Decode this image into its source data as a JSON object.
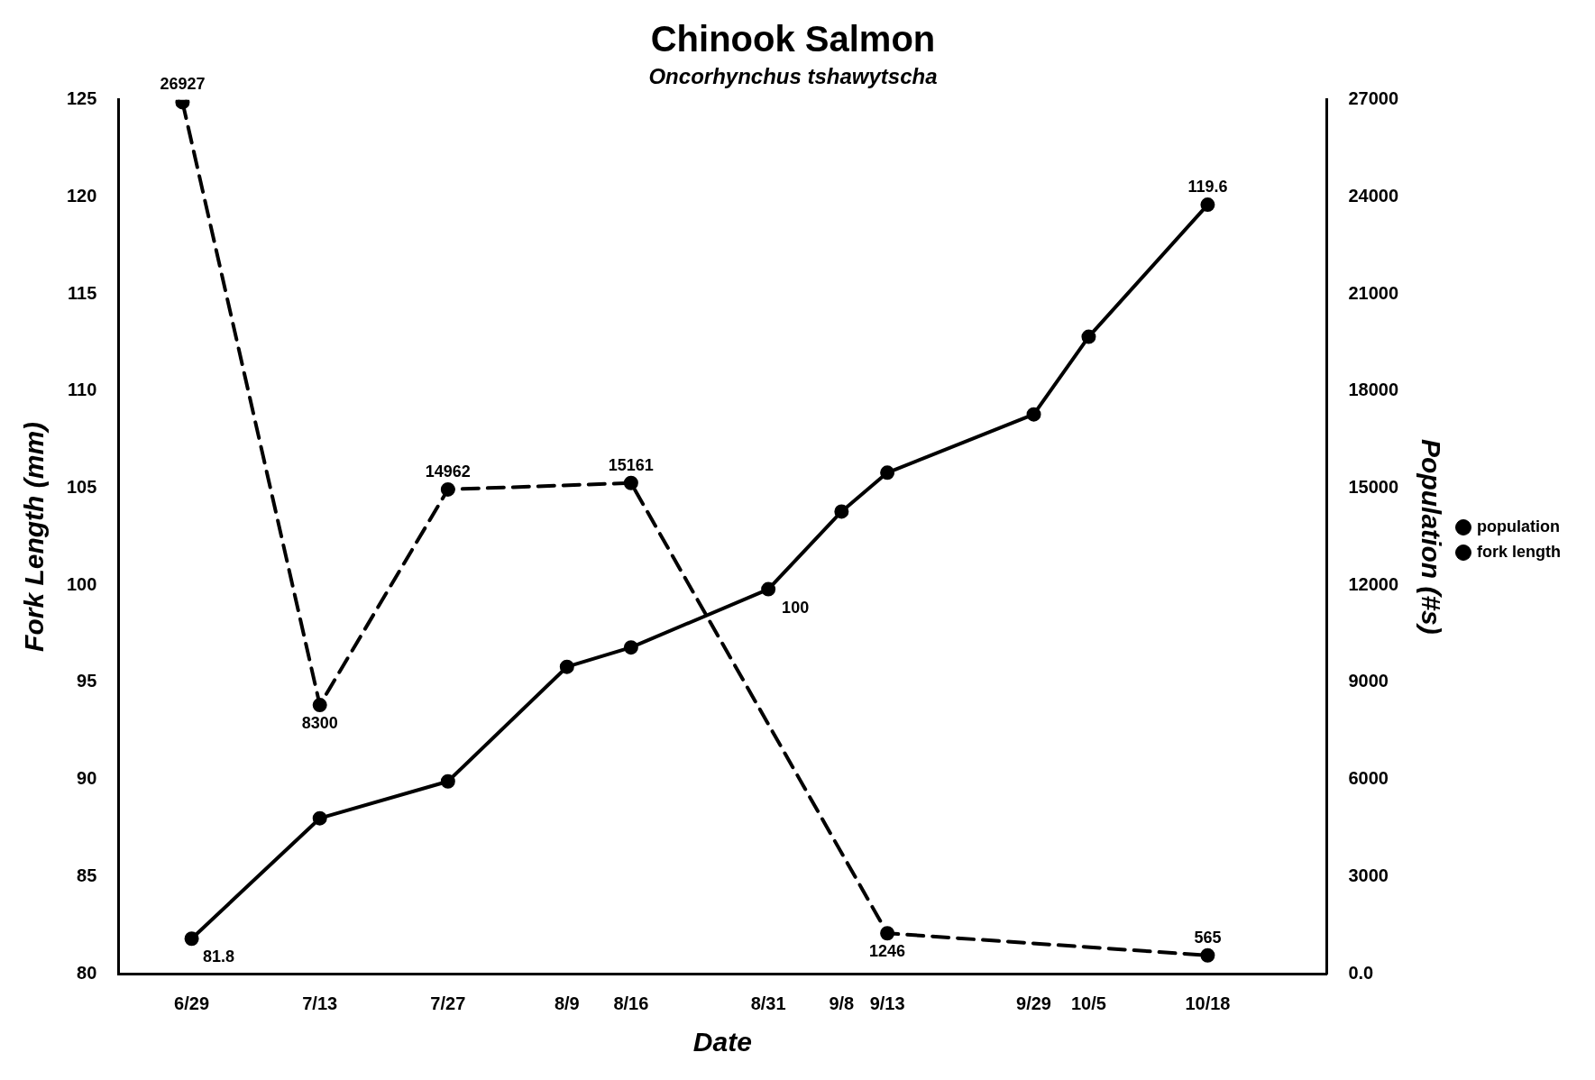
{
  "chart_data": {
    "type": "line",
    "title": "Chinook Salmon",
    "subtitle": "Oncorhynchus tshawytscha",
    "xlabel": "Date",
    "ylabel": "Fork Length (mm)",
    "y2label": "Population (#s)",
    "xlim": [
      "--06-21",
      "--10-31"
    ],
    "xticks": [
      {
        "value": "--06-29",
        "label": "6/29"
      },
      {
        "value": "--07-13",
        "label": "7/13"
      },
      {
        "value": "--07-27",
        "label": "7/27"
      },
      {
        "value": "--08-09",
        "label": "8/9"
      },
      {
        "value": "--08-16",
        "label": "8/16"
      },
      {
        "value": "--08-31",
        "label": "8/31"
      },
      {
        "value": "--09-08",
        "label": "9/8"
      },
      {
        "value": "--09-13",
        "label": "9/13"
      },
      {
        "value": "--09-29",
        "label": "9/29"
      },
      {
        "value": "--10-05",
        "label": "10/5"
      },
      {
        "value": "--10-18",
        "label": "10/18"
      }
    ],
    "ylim": [
      80,
      125
    ],
    "yticks": [
      80,
      85,
      90,
      95,
      100,
      105,
      110,
      115,
      120,
      125
    ],
    "y2lim": [
      0,
      27000
    ],
    "y2ticks": [
      {
        "value": 0,
        "label": "0.0"
      },
      3000,
      6000,
      9000,
      12000,
      15000,
      18000,
      21000,
      24000,
      27000
    ],
    "series": [
      {
        "name": "population",
        "color": "#000000",
        "axis": "y2",
        "line_style": "dashed",
        "x": [
          "--06-28",
          "--07-13",
          "--07-27",
          "--08-16",
          "--09-13",
          "--10-18"
        ],
        "values": [
          26927,
          8300,
          14962,
          15161,
          1246,
          565
        ],
        "value_labels": [
          "26927",
          "8300",
          "14962",
          "15161",
          "1246",
          "565"
        ]
      },
      {
        "name": "fork length",
        "color": "#000000",
        "line_style": "solid",
        "x": [
          "--06-29",
          "--07-13",
          "--07-27",
          "--08-09",
          "--08-16",
          "--08-31",
          "--09-08",
          "--09-13",
          "--09-29",
          "--10-05",
          "--10-18"
        ],
        "values": [
          81.8,
          88,
          89.9,
          95.8,
          96.8,
          99.8,
          103.8,
          105.8,
          108.8,
          112.8,
          119.6
        ],
        "value_labels": [
          "81.8",
          null,
          null,
          null,
          null,
          "100",
          null,
          null,
          null,
          null,
          "119.6"
        ]
      }
    ],
    "marker": "circle",
    "grid": false,
    "legend": "right"
  }
}
